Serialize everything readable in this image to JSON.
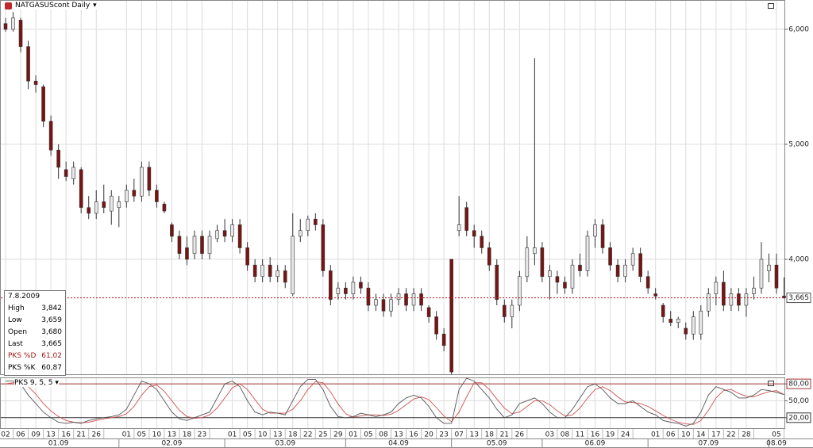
{
  "chart_data": [
    {
      "type": "candlestick",
      "title": "NATGASUScont Daily",
      "categories": [
        "02",
        null,
        "06",
        null,
        "09",
        null,
        "13",
        null,
        "16",
        null,
        "21",
        null,
        "26",
        null,
        null,
        null,
        "01",
        null,
        "05",
        null,
        "10",
        null,
        "13",
        null,
        "18",
        null,
        "23",
        null,
        null,
        null,
        "01",
        null,
        "05",
        null,
        "10",
        null,
        "13",
        null,
        "18",
        null,
        "22",
        null,
        "25",
        null,
        "29",
        null,
        "01",
        null,
        "05",
        null,
        "08",
        null,
        "13",
        null,
        "16",
        null,
        "20",
        null,
        "23",
        null,
        "07",
        null,
        "13",
        null,
        "18",
        null,
        "21",
        null,
        "26",
        null,
        null,
        null,
        "03",
        null,
        "08",
        null,
        "11",
        null,
        "16",
        null,
        "19",
        null,
        "24",
        null,
        null,
        null,
        "01",
        null,
        "06",
        null,
        "10",
        null,
        "14",
        null,
        "17",
        null,
        "22",
        null,
        "28",
        null,
        null,
        null,
        "05",
        null
      ],
      "months": [
        "01.09",
        "02.09",
        "03.09",
        "04.09",
        "05.09",
        "06.09",
        "07.09",
        "08.09"
      ],
      "candles": [
        [
          6050,
          6100,
          5980,
          6000
        ],
        [
          6000,
          6150,
          5980,
          6100
        ],
        [
          6080,
          6100,
          5800,
          5850
        ],
        [
          5850,
          5900,
          5480,
          5550
        ],
        [
          5550,
          5600,
          5450,
          5520
        ],
        [
          5500,
          5520,
          5150,
          5200
        ],
        [
          5200,
          5250,
          4900,
          4950
        ],
        [
          4950,
          5000,
          4700,
          4800
        ],
        [
          4780,
          4850,
          4680,
          4720
        ],
        [
          4700,
          4850,
          4650,
          4800
        ],
        [
          4780,
          4800,
          4400,
          4450
        ],
        [
          4450,
          4550,
          4350,
          4400
        ],
        [
          4400,
          4600,
          4350,
          4500
        ],
        [
          4500,
          4650,
          4400,
          4450
        ],
        [
          4420,
          4600,
          4300,
          4550
        ],
        [
          4450,
          4550,
          4280,
          4500
        ],
        [
          4500,
          4650,
          4450,
          4600
        ],
        [
          4600,
          4700,
          4500,
          4550
        ],
        [
          4550,
          4850,
          4500,
          4800
        ],
        [
          4800,
          4850,
          4550,
          4600
        ],
        [
          4600,
          4650,
          4450,
          4500
        ],
        [
          4480,
          4500,
          4400,
          4420
        ],
        [
          4300,
          4320,
          4150,
          4200
        ],
        [
          4200,
          4250,
          4000,
          4050
        ],
        [
          4100,
          4200,
          3950,
          4000
        ],
        [
          4050,
          4250,
          4000,
          4200
        ],
        [
          4200,
          4250,
          4000,
          4050
        ],
        [
          4050,
          4250,
          4000,
          4200
        ],
        [
          4180,
          4300,
          4150,
          4250
        ],
        [
          4250,
          4350,
          4150,
          4200
        ],
        [
          4200,
          4350,
          4150,
          4300
        ],
        [
          4300,
          4350,
          4050,
          4100
        ],
        [
          4100,
          4150,
          3900,
          3950
        ],
        [
          3950,
          4000,
          3800,
          3850
        ],
        [
          3850,
          4000,
          3800,
          3950
        ],
        [
          3950,
          4020,
          3800,
          3850
        ],
        [
          3850,
          3950,
          3800,
          3900
        ],
        [
          3900,
          3950,
          3750,
          3800
        ],
        [
          3700,
          4400,
          3680,
          4200
        ],
        [
          4200,
          4350,
          4150,
          4250
        ],
        [
          4250,
          4380,
          4200,
          4350
        ],
        [
          4350,
          4400,
          4250,
          4300
        ],
        [
          4300,
          4350,
          3850,
          3900
        ],
        [
          3900,
          3950,
          3600,
          3650
        ],
        [
          3700,
          3800,
          3650,
          3750
        ],
        [
          3750,
          3800,
          3650,
          3700
        ],
        [
          3700,
          3850,
          3650,
          3800
        ],
        [
          3800,
          3850,
          3700,
          3750
        ],
        [
          3750,
          3800,
          3550,
          3600
        ],
        [
          3600,
          3700,
          3550,
          3650
        ],
        [
          3650,
          3700,
          3500,
          3550
        ],
        [
          3550,
          3700,
          3500,
          3650
        ],
        [
          3650,
          3750,
          3600,
          3700
        ],
        [
          3700,
          3750,
          3550,
          3600
        ],
        [
          3600,
          3750,
          3550,
          3700
        ],
        [
          3700,
          3750,
          3550,
          3600
        ],
        [
          3580,
          3600,
          3450,
          3500
        ],
        [
          3500,
          3550,
          3300,
          3350
        ],
        [
          3350,
          3400,
          3200,
          3250
        ],
        [
          4000,
          4000,
          3000,
          3020
        ],
        [
          4250,
          4550,
          4200,
          4300
        ],
        [
          4450,
          4500,
          4200,
          4250
        ],
        [
          4250,
          4300,
          4100,
          4200
        ],
        [
          4200,
          4250,
          4050,
          4100
        ],
        [
          4100,
          4150,
          3900,
          3950
        ],
        [
          3950,
          4000,
          3600,
          3650
        ],
        [
          3600,
          3650,
          3450,
          3500
        ],
        [
          3500,
          3650,
          3400,
          3600
        ],
        [
          3600,
          3900,
          3550,
          3850
        ],
        [
          3850,
          4200,
          3800,
          4100
        ],
        [
          4050,
          5750,
          3950,
          4100
        ],
        [
          4100,
          4150,
          3800,
          3850
        ],
        [
          3850,
          3950,
          3650,
          3900
        ],
        [
          3850,
          3900,
          3700,
          3800
        ],
        [
          3800,
          3850,
          3700,
          3750
        ],
        [
          3750,
          4000,
          3700,
          3950
        ],
        [
          3950,
          4050,
          3850,
          3900
        ],
        [
          3900,
          4250,
          3850,
          4200
        ],
        [
          4200,
          4350,
          4100,
          4300
        ],
        [
          4300,
          4350,
          4050,
          4100
        ],
        [
          4100,
          4150,
          3900,
          3950
        ],
        [
          3950,
          4000,
          3800,
          3850
        ],
        [
          3850,
          4000,
          3800,
          3950
        ],
        [
          3950,
          4100,
          3900,
          4050
        ],
        [
          4050,
          4100,
          3800,
          3850
        ],
        [
          3850,
          3900,
          3700,
          3750
        ],
        [
          3700,
          3750,
          3650,
          3680
        ],
        [
          3600,
          3620,
          3450,
          3500
        ],
        [
          3480,
          3550,
          3420,
          3450
        ],
        [
          3450,
          3500,
          3400,
          3480
        ],
        [
          3400,
          3450,
          3300,
          3350
        ],
        [
          3350,
          3550,
          3300,
          3500
        ],
        [
          3350,
          3600,
          3300,
          3550
        ],
        [
          3550,
          3750,
          3500,
          3700
        ],
        [
          3700,
          3850,
          3600,
          3800
        ],
        [
          3800,
          3900,
          3550,
          3600
        ],
        [
          3600,
          3750,
          3550,
          3700
        ],
        [
          3700,
          3750,
          3550,
          3600
        ],
        [
          3600,
          3750,
          3500,
          3700
        ],
        [
          3700,
          3850,
          3650,
          3750
        ],
        [
          3750,
          4150,
          3700,
          4000
        ],
        [
          3900,
          4050,
          3800,
          3950
        ],
        [
          3950,
          4050,
          3700,
          3750
        ],
        [
          3680,
          3842,
          3659,
          3665
        ]
      ],
      "up_color": "#e8e8e8",
      "down_color": "#7a1414",
      "ylim": [
        3000,
        6255
      ],
      "yticks": [
        {
          "value": 4000,
          "label": "4,000"
        },
        {
          "value": 5000,
          "label": "5,000"
        },
        {
          "value": 6000,
          "label": "6,000"
        }
      ],
      "last_price": {
        "value": 3665,
        "label": "3,665"
      },
      "grid": true
    },
    {
      "type": "line",
      "title": "PKS 9, 5, 5",
      "series": [
        {
          "name": "PKS %K",
          "color": "#555555",
          "values": [
            85,
            85,
            80,
            60,
            45,
            30,
            20,
            12,
            10,
            12,
            10,
            15,
            18,
            20,
            22,
            25,
            35,
            60,
            85,
            80,
            70,
            50,
            30,
            18,
            15,
            20,
            25,
            30,
            55,
            80,
            85,
            75,
            50,
            30,
            25,
            30,
            28,
            25,
            50,
            75,
            88,
            88,
            70,
            40,
            22,
            20,
            22,
            28,
            25,
            22,
            25,
            30,
            45,
            55,
            60,
            55,
            40,
            20,
            10,
            10,
            70,
            90,
            85,
            70,
            55,
            35,
            20,
            25,
            45,
            50,
            55,
            45,
            30,
            20,
            20,
            35,
            55,
            75,
            80,
            70,
            55,
            45,
            45,
            50,
            40,
            30,
            25,
            15,
            12,
            10,
            5,
            10,
            30,
            60,
            75,
            70,
            65,
            55,
            55,
            60,
            70,
            68,
            65,
            60.87
          ]
        },
        {
          "name": "PKS %D",
          "color": "#d05050",
          "values": [
            80,
            82,
            83,
            75,
            62,
            45,
            32,
            22,
            15,
            12,
            11,
            12,
            15,
            18,
            20,
            22,
            27,
            40,
            60,
            75,
            78,
            67,
            50,
            33,
            22,
            19,
            20,
            25,
            37,
            55,
            73,
            80,
            70,
            52,
            35,
            28,
            28,
            28,
            35,
            50,
            70,
            84,
            82,
            66,
            44,
            27,
            21,
            23,
            25,
            25,
            24,
            26,
            33,
            43,
            53,
            57,
            52,
            38,
            23,
            13,
            30,
            57,
            82,
            82,
            70,
            53,
            37,
            27,
            30,
            40,
            50,
            50,
            43,
            32,
            23,
            25,
            37,
            55,
            70,
            75,
            68,
            57,
            48,
            47,
            45,
            40,
            32,
            24,
            17,
            12,
            9,
            8,
            15,
            33,
            55,
            68,
            70,
            63,
            58,
            57,
            62,
            66,
            68,
            61.02
          ]
        }
      ],
      "ylim": [
        0,
        90
      ],
      "yticks": [
        {
          "value": 20,
          "label": "20,00"
        },
        {
          "value": 50,
          "label": "50,00"
        },
        {
          "value": 80,
          "label": "80,00"
        }
      ]
    }
  ],
  "info": {
    "date": "7.8.2009",
    "rows": [
      [
        "High",
        "3,842"
      ],
      [
        "Low",
        "3,659"
      ],
      [
        "Open",
        "3,680"
      ],
      [
        "Last",
        "3,665"
      ]
    ],
    "indicators": [
      [
        "PKS %D",
        "61,02"
      ],
      [
        "PKS %K",
        "60,87"
      ]
    ]
  }
}
